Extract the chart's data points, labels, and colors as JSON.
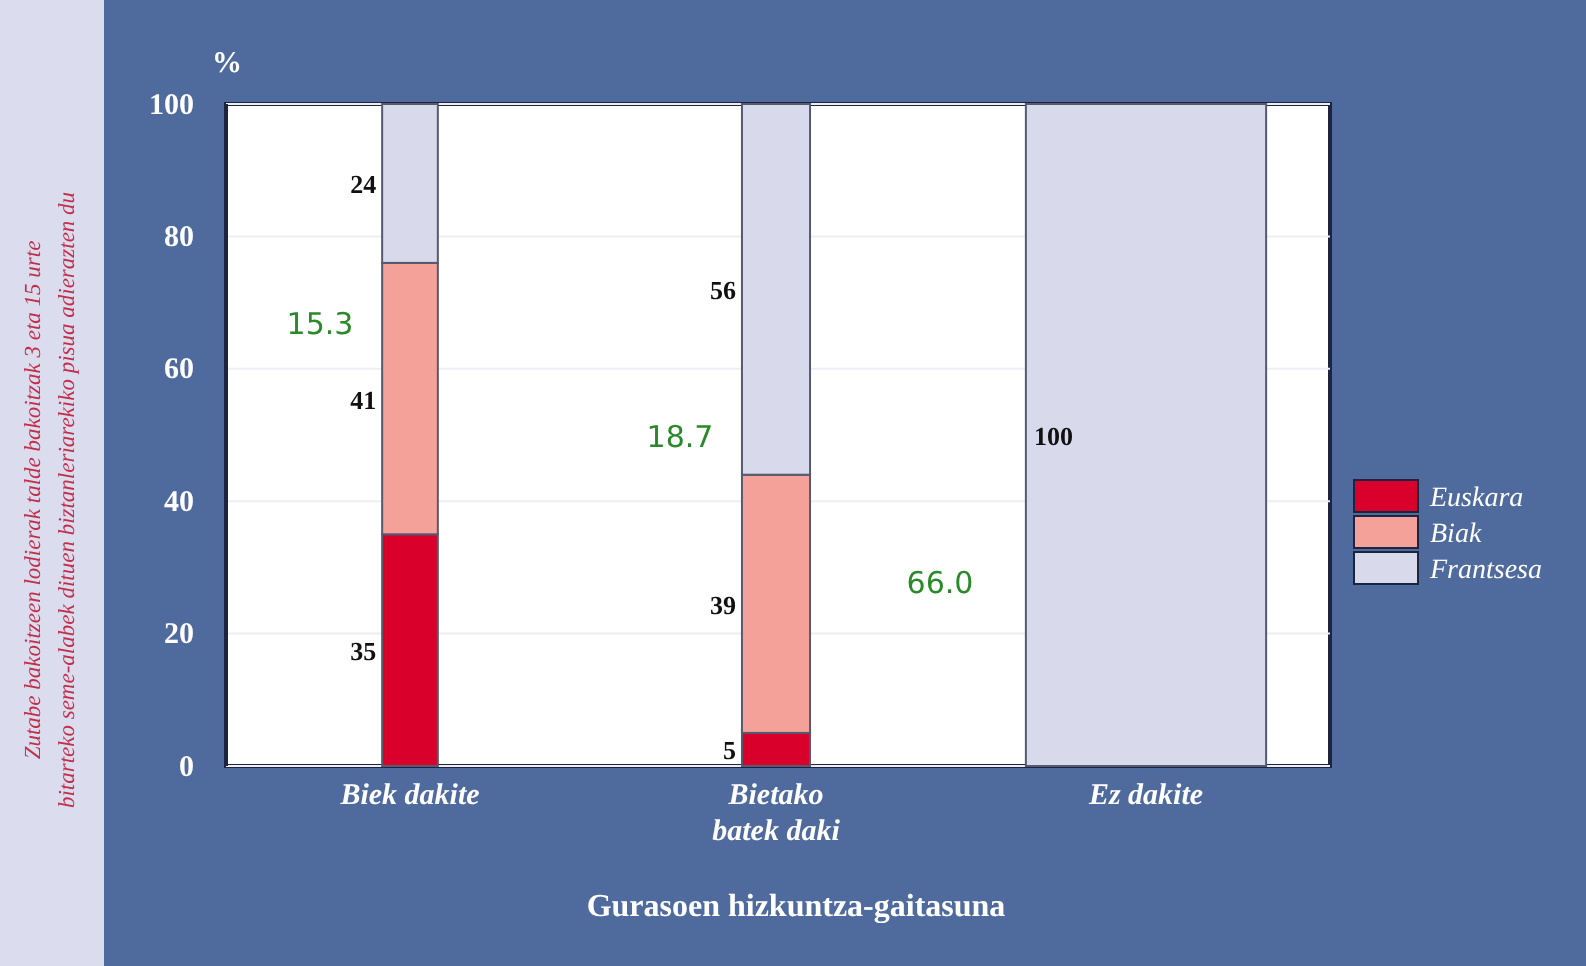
{
  "chart_data": {
    "type": "bar",
    "stacked": true,
    "ylabel": "Zutabe bakoitzeen lodierak talde bakoitzak 3 eta 15 urte bitarteko seme-alabek dituen biztanleriarekiko pisua adierazten du",
    "xlabel": "Gurasoen hizkuntza-gaitasuna",
    "categories": [
      "Biek dakite",
      "Bietako batek daki",
      "Ez dakite"
    ],
    "series": [
      {
        "name": "Euskara",
        "color": "#d9002b",
        "values": [
          35,
          5,
          0
        ],
        "value_labels": [
          "35",
          "5",
          null
        ]
      },
      {
        "name": "Biak",
        "color": "#f4a19a",
        "values": [
          41,
          39,
          0
        ],
        "value_labels": [
          "41",
          "39",
          null
        ]
      },
      {
        "name": "Frantsesa",
        "color": "#d9d9ec",
        "values": [
          24,
          56,
          100
        ],
        "value_labels": [
          "24",
          "56",
          "100"
        ]
      }
    ],
    "ylim": [
      0,
      100
    ],
    "yticks": [
      0,
      20,
      40,
      60,
      80,
      100
    ],
    "grid": "y",
    "legend": "right",
    "annotations": [
      "%",
      "15.3",
      "18.7",
      "66.0"
    ]
  }
}
